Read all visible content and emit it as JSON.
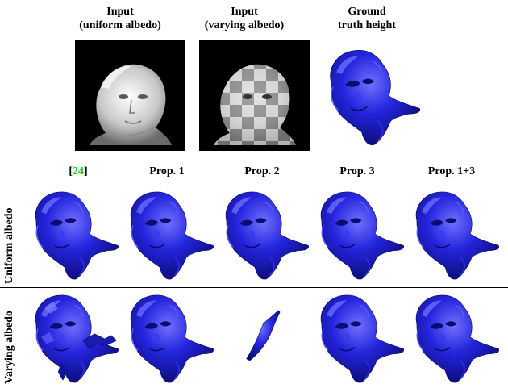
{
  "top_headers": [
    {
      "line1": "Input",
      "line2": "(uniform albedo)"
    },
    {
      "line1": "Input",
      "line2": "(varying albedo)"
    },
    {
      "line1": "Ground",
      "line2": "truth height"
    }
  ],
  "column_headers": [
    {
      "prefix": "[",
      "ref": "24",
      "suffix": "]"
    },
    {
      "label": "Prop. 1"
    },
    {
      "label": "Prop. 2"
    },
    {
      "label": "Prop. 3"
    },
    {
      "label": "Prop. 1+3"
    }
  ],
  "row_labels": [
    "Uniform albedo",
    "Varying albedo"
  ],
  "colors": {
    "surface": "#1c1ccc",
    "surface_dark": "#0a0a66",
    "surface_light": "#6b6bff",
    "citation": "#22cc22",
    "photo_bg": "#000000"
  }
}
